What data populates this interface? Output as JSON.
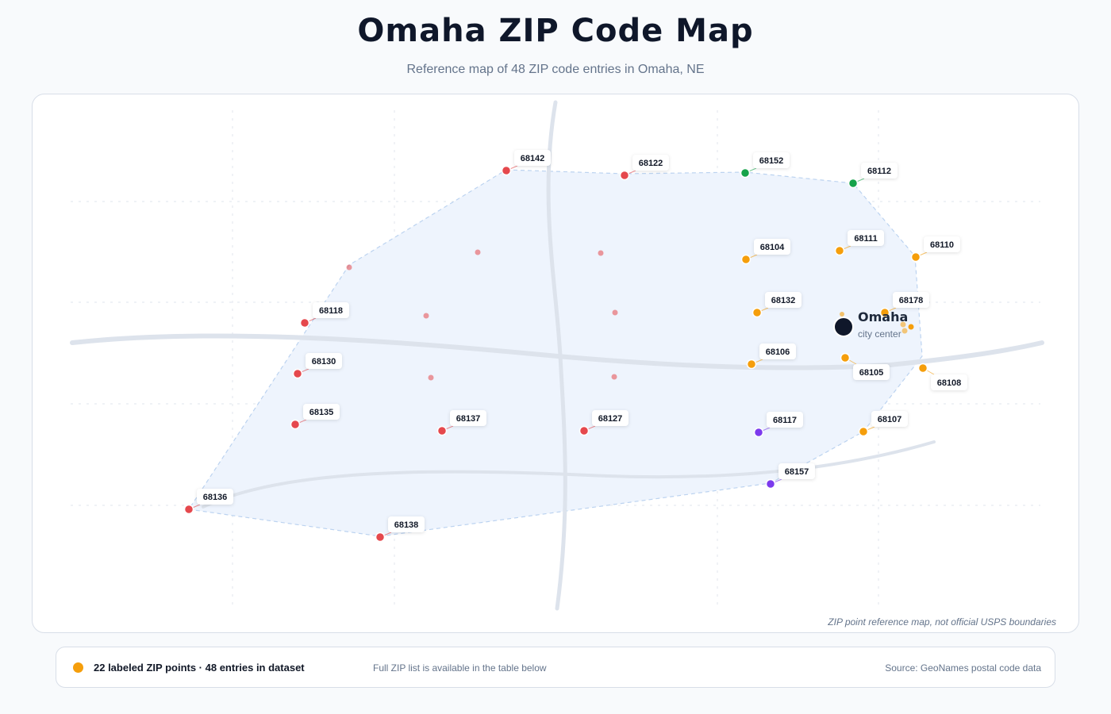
{
  "title": "Omaha ZIP Code Map",
  "subtitle": "Reference map of 48 ZIP code entries in Omaha, NE",
  "disclaimer": "ZIP point reference map, not official USPS boundaries",
  "city": {
    "name": "Omaha",
    "caption": "city center",
    "color": "#0f172a"
  },
  "colors": {
    "west": "#e5484d",
    "north": "#16a34a",
    "central": "#f59e0b",
    "south": "#7c3aed",
    "area_fill": "#eef4fd",
    "area_stroke": "#bcd3f0",
    "road": "#dde3ec"
  },
  "legend": {
    "count_text": "22 labeled ZIP points · 48 entries in dataset",
    "note": "Full ZIP list is available in the table below",
    "source": "Source: GeoNames postal code data"
  },
  "zips": [
    {
      "code": "68142",
      "group": "west"
    },
    {
      "code": "68122",
      "group": "west"
    },
    {
      "code": "68152",
      "group": "north"
    },
    {
      "code": "68112",
      "group": "north"
    },
    {
      "code": "68104",
      "group": "central"
    },
    {
      "code": "68111",
      "group": "central"
    },
    {
      "code": "68110",
      "group": "central"
    },
    {
      "code": "68178",
      "group": "central"
    },
    {
      "code": "68132",
      "group": "central"
    },
    {
      "code": "68118",
      "group": "west"
    },
    {
      "code": "68106",
      "group": "central"
    },
    {
      "code": "68105",
      "group": "central"
    },
    {
      "code": "68108",
      "group": "central"
    },
    {
      "code": "68130",
      "group": "west"
    },
    {
      "code": "68135",
      "group": "west"
    },
    {
      "code": "68137",
      "group": "west"
    },
    {
      "code": "68127",
      "group": "west"
    },
    {
      "code": "68117",
      "group": "south"
    },
    {
      "code": "68107",
      "group": "central"
    },
    {
      "code": "68157",
      "group": "south"
    },
    {
      "code": "68136",
      "group": "west"
    },
    {
      "code": "68138",
      "group": "west"
    }
  ]
}
